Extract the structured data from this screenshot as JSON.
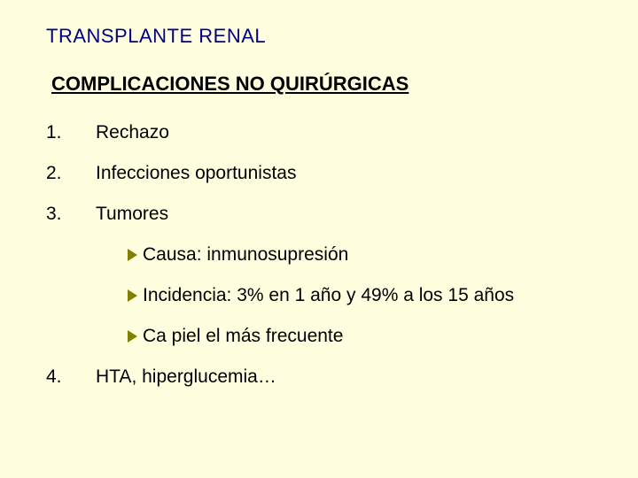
{
  "colors": {
    "background": "#ffffe0",
    "title_color": "#000080",
    "text_color": "#000000",
    "bullet_color": "#808000"
  },
  "typography": {
    "font_family": "Verdana",
    "title_fontsize": 22,
    "heading_fontsize": 22,
    "body_fontsize": 21
  },
  "title": "TRANSPLANTE RENAL",
  "heading": "COMPLICACIONES NO QUIRÚRGICAS",
  "items": [
    {
      "num": "1.",
      "text": "Rechazo"
    },
    {
      "num": "2.",
      "text": "Infecciones oportunistas"
    },
    {
      "num": "3.",
      "text": "Tumores"
    }
  ],
  "subitems": [
    {
      "text": "Causa: inmunosupresión"
    },
    {
      "text": "Incidencia: 3% en 1 año y 49% a los 15 años"
    },
    {
      "text": "Ca piel el más frecuente"
    }
  ],
  "items_after": [
    {
      "num": "4.",
      "text": "HTA, hiperglucemia…"
    }
  ]
}
